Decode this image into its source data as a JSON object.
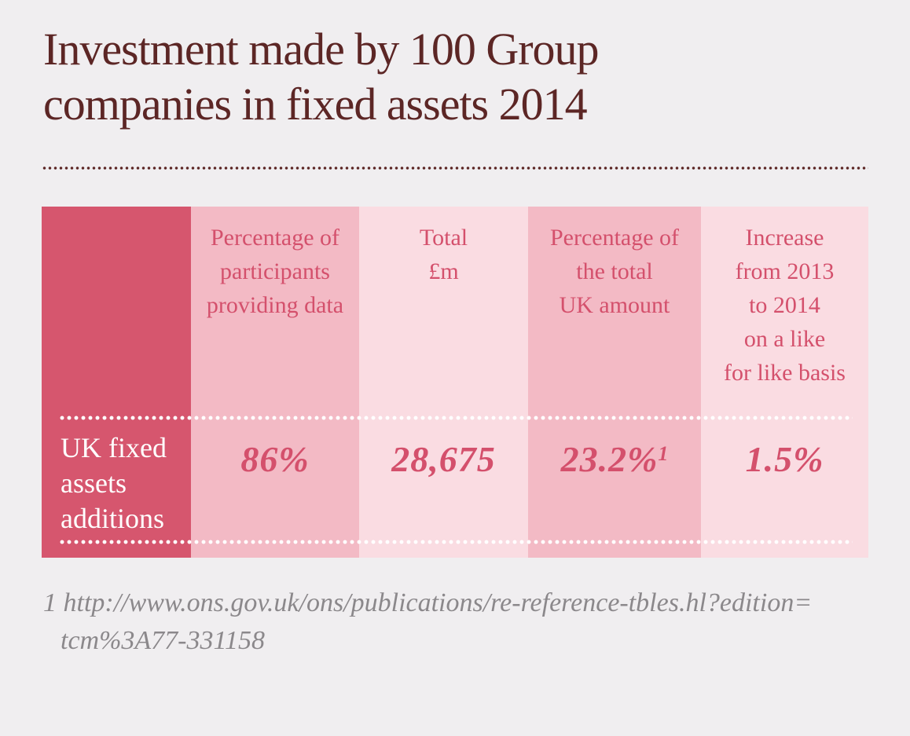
{
  "title": {
    "line1": "Investment made by 100 Group",
    "line2": "companies in fixed assets 2014"
  },
  "table": {
    "row_header_lines": [
      "UK fixed",
      "assets",
      "additions"
    ],
    "columns": [
      {
        "header_lines": [
          "Percentage of",
          "participants",
          "providing data"
        ],
        "value": "86%",
        "value_sup": ""
      },
      {
        "header_lines": [
          "Total",
          "£m"
        ],
        "value": "28,675",
        "value_sup": ""
      },
      {
        "header_lines": [
          "Percentage of",
          "the total",
          "UK amount"
        ],
        "value": "23.2%",
        "value_sup": "1"
      },
      {
        "header_lines": [
          "Increase",
          "from 2013",
          "to 2014",
          "on a like",
          "for like basis"
        ],
        "value": "1.5%",
        "value_sup": ""
      }
    ]
  },
  "footnote": {
    "line1": "1 http://www.ons.gov.uk/ons/publications/re-reference-tbles.hl?edition=",
    "line2": "tcm%3A77-331158"
  },
  "colors": {
    "page_background": "#f0eef0",
    "title_maroon": "#5c2625",
    "row_header_column": "#d6566e",
    "medium_pink_column": "#f3bac5",
    "light_pink_column": "#fadce2",
    "accent_text_rose": "#d4506c",
    "row_label_text": "#ffffff",
    "footnote_gray": "#8b888b"
  },
  "chart_data": {
    "type": "table",
    "title": "Investment made by 100 Group companies in fixed assets 2014",
    "columns": [
      "Percentage of participants providing data",
      "Total £m",
      "Percentage of the total UK amount",
      "Increase from 2013 to 2014 on a like for like basis"
    ],
    "rows": [
      {
        "label": "UK fixed assets additions",
        "values": [
          "86%",
          "28,675",
          "23.2%¹",
          "1.5%"
        ]
      }
    ],
    "footnote": "1 http://www.ons.gov.uk/ons/publications/re-reference-tbles.hl?edition=tcm%3A77-331158"
  }
}
